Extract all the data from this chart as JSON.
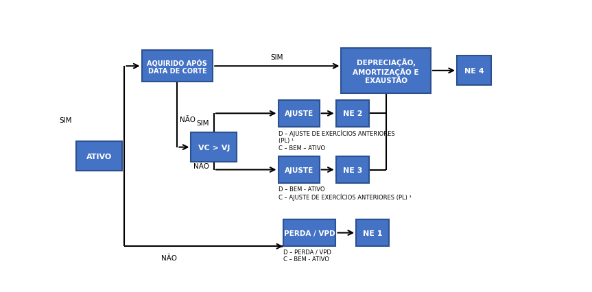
{
  "bg_color": "#ffffff",
  "box_fill": "#4472c4",
  "box_edge": "#2c5090",
  "box_text": "#ffffff",
  "line_color": "#000000",
  "boxes": {
    "ativo": [
      0.055,
      0.46,
      0.1,
      0.13
    ],
    "aq": [
      0.225,
      0.86,
      0.155,
      0.14
    ],
    "vc": [
      0.305,
      0.5,
      0.1,
      0.13
    ],
    "dep": [
      0.68,
      0.84,
      0.195,
      0.2
    ],
    "ne4": [
      0.872,
      0.84,
      0.075,
      0.13
    ],
    "aj2": [
      0.49,
      0.65,
      0.09,
      0.12
    ],
    "ne2": [
      0.607,
      0.65,
      0.072,
      0.12
    ],
    "aj3": [
      0.49,
      0.4,
      0.09,
      0.12
    ],
    "ne3": [
      0.607,
      0.4,
      0.072,
      0.12
    ],
    "perda": [
      0.513,
      0.12,
      0.115,
      0.12
    ],
    "ne1": [
      0.651,
      0.12,
      0.072,
      0.12
    ]
  },
  "labels": {
    "ativo": "ATIVO",
    "aq": "AQUIRIDO APÓS\nDATA DE CORTE",
    "vc": "VC > VJ",
    "dep": "DEPRECIAÇÃO,\nAMORTIZAÇÃO E\nEXAUSTÃO",
    "ne4": "NE 4",
    "aj2": "AJUSTE",
    "ne2": "NE 2",
    "aj3": "AJUSTE",
    "ne3": "NE 3",
    "perda": "PERDA / VPD",
    "ne1": "NE 1"
  },
  "fontsizes": {
    "ativo": 8.0,
    "aq": 7.0,
    "vc": 8.0,
    "dep": 7.5,
    "ne4": 8.0,
    "aj2": 7.5,
    "ne2": 8.0,
    "aj3": 7.5,
    "ne3": 8.0,
    "perda": 7.5,
    "ne1": 8.0
  },
  "note_aj2": "D – AJUSTE DE EXERCÍCIOS ANTERIORES\n(PL) ¹\nC – BEM – ATIVO",
  "note_aj3": "D – BEM - ATIVO\nC – AJUSTE DE EXERCÍCIOS ANTERIORES (PL) ¹",
  "note_perda": "D – PERDA / VPD\nC – BEM - ATIVO",
  "lw": 1.5,
  "arrow_ms": 12
}
